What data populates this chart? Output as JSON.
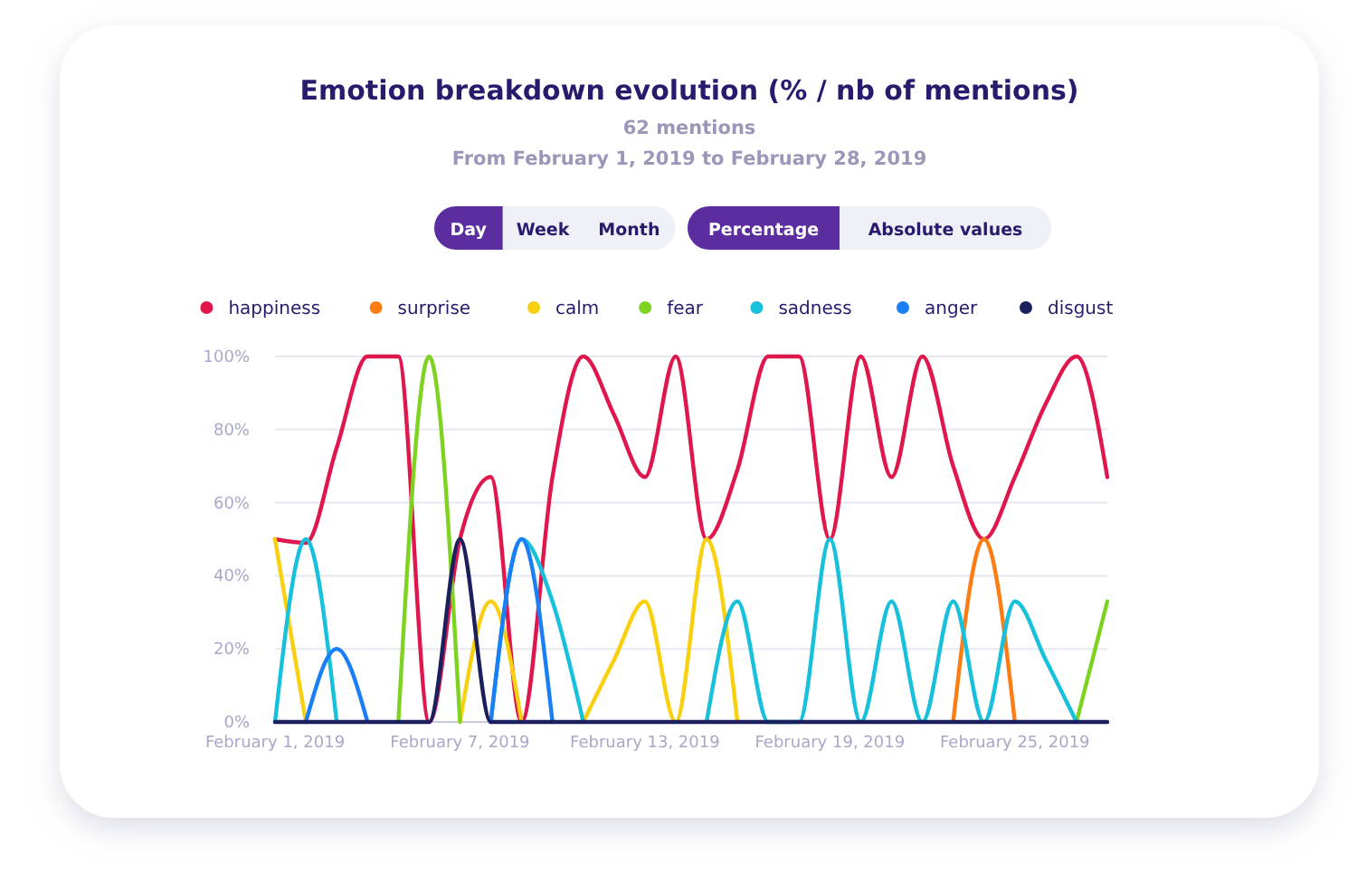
{
  "chart_data": {
    "type": "line",
    "title": "Emotion breakdown evolution (% / nb of mentions)",
    "subtitle": "62 mentions\nFrom February 1, 2019 to February 28, 2019",
    "annotations": [
      "Day",
      "Week",
      "Month",
      "Percentage",
      "Absolute values"
    ],
    "x": [
      "2019-02-01",
      "2019-02-02",
      "2019-02-03",
      "2019-02-04",
      "2019-02-05",
      "2019-02-06",
      "2019-02-07",
      "2019-02-08",
      "2019-02-09",
      "2019-02-10",
      "2019-02-11",
      "2019-02-12",
      "2019-02-13",
      "2019-02-14",
      "2019-02-15",
      "2019-02-16",
      "2019-02-17",
      "2019-02-18",
      "2019-02-19",
      "2019-02-20",
      "2019-02-21",
      "2019-02-22",
      "2019-02-23",
      "2019-02-24",
      "2019-02-25",
      "2019-02-26",
      "2019-02-27",
      "2019-02-28"
    ],
    "series": [
      {
        "name": "happiness",
        "color": "#e0174c",
        "values": [
          50,
          49,
          75,
          100,
          100,
          0,
          50,
          67,
          0,
          67,
          100,
          84,
          67,
          100,
          50,
          69,
          100,
          100,
          50,
          100,
          67,
          100,
          70,
          50,
          67,
          87,
          100,
          67
        ]
      },
      {
        "name": "surprise",
        "color": "#fb7d14",
        "values": [
          null,
          null,
          null,
          null,
          null,
          null,
          null,
          null,
          null,
          null,
          null,
          null,
          null,
          null,
          null,
          null,
          null,
          null,
          null,
          null,
          null,
          null,
          0,
          50,
          0,
          null,
          null,
          null
        ]
      },
      {
        "name": "calm",
        "color": "#f9d00f",
        "values": [
          50,
          0,
          null,
          null,
          null,
          null,
          0,
          33,
          0,
          null,
          0,
          17,
          33,
          0,
          50,
          0,
          null,
          null,
          null,
          null,
          null,
          null,
          null,
          null,
          null,
          null,
          null,
          null
        ]
      },
      {
        "name": "fear",
        "color": "#7ed321",
        "values": [
          null,
          null,
          null,
          null,
          0,
          100,
          0,
          null,
          null,
          null,
          null,
          null,
          null,
          null,
          null,
          null,
          null,
          null,
          null,
          null,
          null,
          null,
          null,
          null,
          null,
          null,
          0,
          33
        ]
      },
      {
        "name": "sadness",
        "color": "#17c1dc",
        "values": [
          0,
          50,
          0,
          null,
          null,
          null,
          null,
          0,
          50,
          33,
          0,
          null,
          null,
          null,
          0,
          33,
          0,
          0,
          50,
          0,
          33,
          0,
          33,
          0,
          33,
          17,
          0,
          null
        ]
      },
      {
        "name": "anger",
        "color": "#1a7ef5",
        "values": [
          null,
          0,
          20,
          0,
          null,
          null,
          null,
          0,
          50,
          0,
          null,
          null,
          null,
          null,
          null,
          null,
          null,
          null,
          null,
          null,
          null,
          null,
          null,
          null,
          null,
          null,
          null,
          null
        ]
      },
      {
        "name": "disgust",
        "color": "#1b1f5e",
        "values": [
          0,
          0,
          0,
          0,
          0,
          0,
          50,
          0,
          0,
          0,
          0,
          0,
          0,
          0,
          0,
          0,
          0,
          0,
          0,
          0,
          0,
          0,
          0,
          0,
          0,
          0,
          0,
          0
        ]
      }
    ],
    "xlim": [
      "2019-02-01",
      "2019-02-28"
    ],
    "xticks": [
      {
        "value": "2019-02-01",
        "label": "February 1, 2019"
      },
      {
        "value": "2019-02-07",
        "label": "February 7, 2019"
      },
      {
        "value": "2019-02-13",
        "label": "February 13, 2019"
      },
      {
        "value": "2019-02-19",
        "label": "February 19, 2019"
      },
      {
        "value": "2019-02-25",
        "label": "February 25, 2019"
      }
    ],
    "ylim": [
      0,
      100
    ],
    "yticks": [
      {
        "value": 0,
        "label": "0%"
      },
      {
        "value": 20,
        "label": "20%"
      },
      {
        "value": 40,
        "label": "40%"
      },
      {
        "value": 60,
        "label": "60%"
      },
      {
        "value": 80,
        "label": "80%"
      },
      {
        "value": 100,
        "label": "100%"
      }
    ],
    "grid": "y",
    "legend": "top",
    "marker": "none",
    "line_style": "solid"
  }
}
